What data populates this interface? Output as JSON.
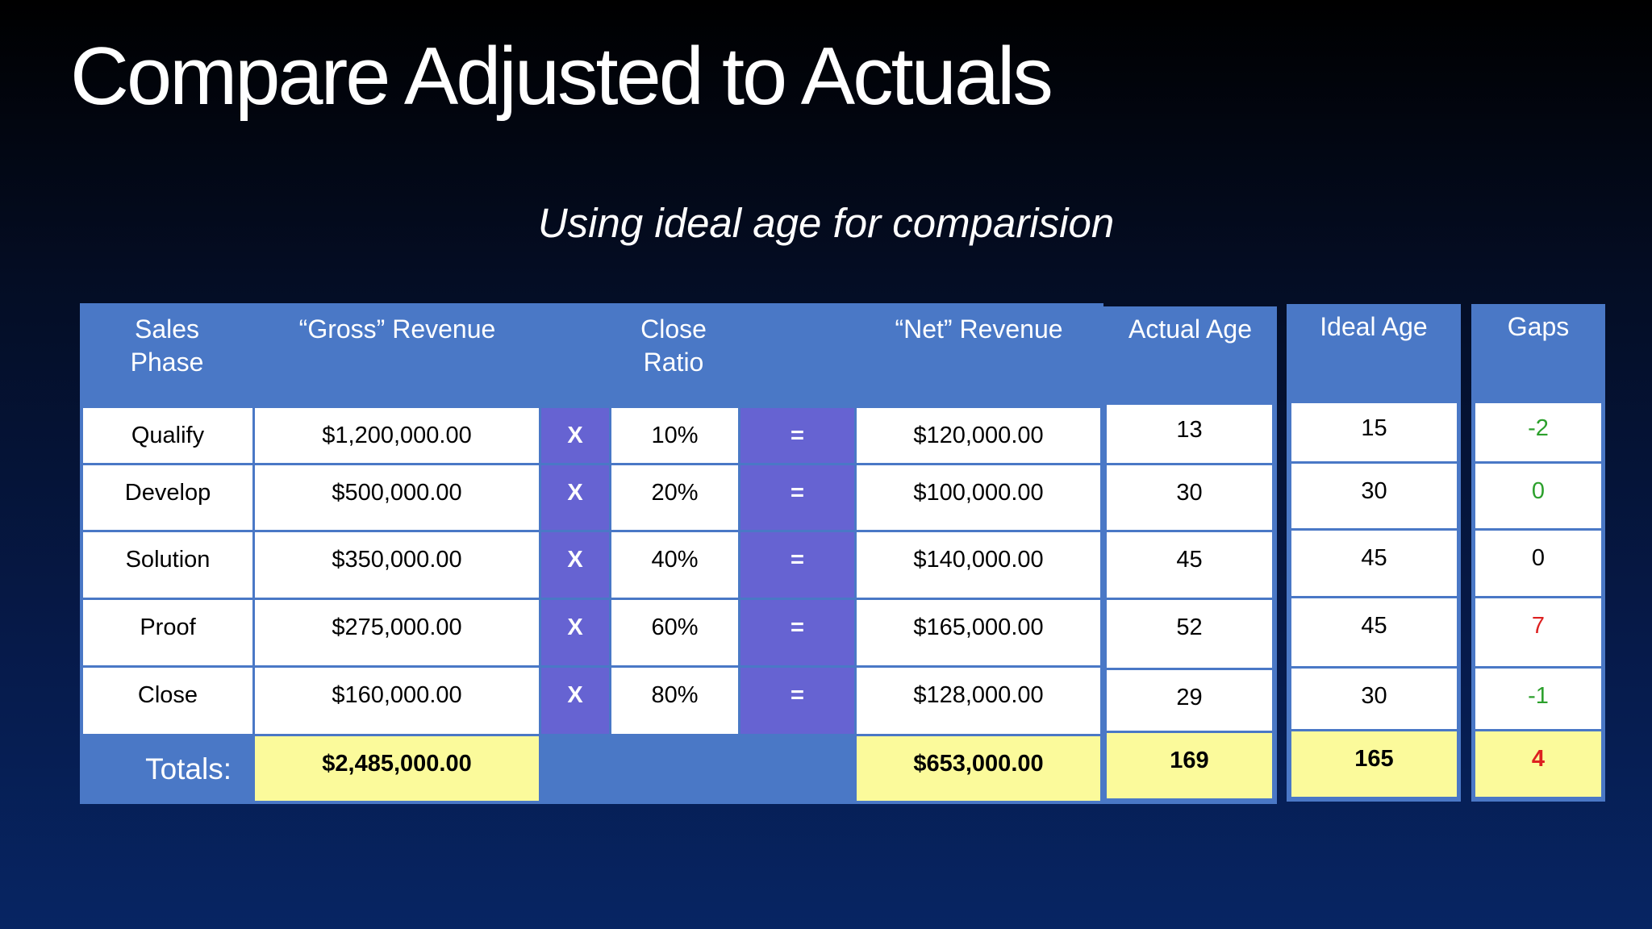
{
  "title": "Compare Adjusted to Actuals",
  "subtitle": "Using ideal age for comparision",
  "headers": {
    "sales_phase": [
      "Sales",
      "Phase"
    ],
    "gross_revenue": "“Gross” Revenue",
    "close_ratio": [
      "Close",
      "Ratio"
    ],
    "net_revenue": "“Net” Revenue",
    "actual_age": "Actual Age",
    "ideal_age": "Ideal Age",
    "gaps": "Gaps"
  },
  "operators": {
    "multiply": "X",
    "equals": "="
  },
  "rows": [
    {
      "phase": "Qualify",
      "gross": "$1,200,000.00",
      "ratio": "10%",
      "net": "$120,000.00",
      "actual": "13",
      "ideal": "15",
      "gap": "-2",
      "gap_color": "#2ca02c"
    },
    {
      "phase": "Develop",
      "gross": "$500,000.00",
      "ratio": "20%",
      "net": "$100,000.00",
      "actual": "30",
      "ideal": "30",
      "gap": "0",
      "gap_color": "#2ca02c"
    },
    {
      "phase": "Solution",
      "gross": "$350,000.00",
      "ratio": "40%",
      "net": "$140,000.00",
      "actual": "45",
      "ideal": "45",
      "gap": "0",
      "gap_color": "#000000"
    },
    {
      "phase": "Proof",
      "gross": "$275,000.00",
      "ratio": "60%",
      "net": "$165,000.00",
      "actual": "52",
      "ideal": "45",
      "gap": "7",
      "gap_color": "#dd2020"
    },
    {
      "phase": "Close",
      "gross": "$160,000.00",
      "ratio": "80%",
      "net": "$128,000.00",
      "actual": "29",
      "ideal": "30",
      "gap": "-1",
      "gap_color": "#2ca02c"
    }
  ],
  "totals": {
    "label": "Totals:",
    "gross": "$2,485,000.00",
    "net": "$653,000.00",
    "actual": "169",
    "ideal": "165",
    "gap": "4",
    "gap_color": "#dd2020"
  }
}
